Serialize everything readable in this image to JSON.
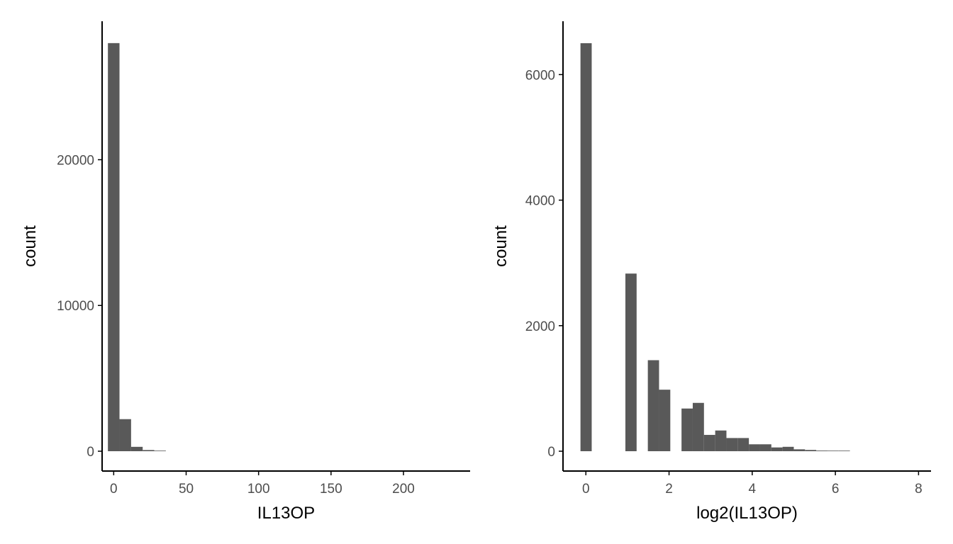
{
  "colors": {
    "bar": "#595959",
    "axis": "#000000",
    "tick_text": "#4d4d4d",
    "background": "#ffffff"
  },
  "chart_data": [
    {
      "type": "bar",
      "subtype": "histogram",
      "xlabel": "IL13OP",
      "ylabel": "count",
      "xlim": [
        -8,
        246
      ],
      "ylim": [
        0,
        29500
      ],
      "xticks": [
        0,
        50,
        100,
        150,
        200
      ],
      "yticks": [
        0,
        10000,
        20000
      ],
      "bin_width": 8,
      "bars": [
        {
          "x0": -4,
          "x1": 4,
          "value": 28000
        },
        {
          "x0": 4,
          "x1": 12,
          "value": 2200
        },
        {
          "x0": 12,
          "x1": 20,
          "value": 300
        },
        {
          "x0": 20,
          "x1": 28,
          "value": 80
        },
        {
          "x0": 28,
          "x1": 36,
          "value": 30
        }
      ],
      "grid": false
    },
    {
      "type": "bar",
      "subtype": "histogram",
      "xlabel": "log2(IL13OP)",
      "ylabel": "count",
      "xlim": [
        -0.55,
        8.3
      ],
      "ylim": [
        0,
        6850
      ],
      "xticks": [
        0,
        2,
        4,
        6,
        8
      ],
      "yticks": [
        0,
        2000,
        4000,
        6000
      ],
      "bin_width": 0.27,
      "bars": [
        {
          "x0": -0.13,
          "x1": 0.14,
          "value": 6500
        },
        {
          "x0": 0.95,
          "x1": 1.22,
          "value": 2830
        },
        {
          "x0": 1.49,
          "x1": 1.76,
          "value": 1450
        },
        {
          "x0": 1.76,
          "x1": 2.03,
          "value": 980
        },
        {
          "x0": 2.3,
          "x1": 2.57,
          "value": 680
        },
        {
          "x0": 2.57,
          "x1": 2.84,
          "value": 770
        },
        {
          "x0": 2.84,
          "x1": 3.11,
          "value": 260
        },
        {
          "x0": 3.11,
          "x1": 3.38,
          "value": 330
        },
        {
          "x0": 3.38,
          "x1": 3.65,
          "value": 210
        },
        {
          "x0": 3.65,
          "x1": 3.92,
          "value": 210
        },
        {
          "x0": 3.92,
          "x1": 4.19,
          "value": 110
        },
        {
          "x0": 4.19,
          "x1": 4.46,
          "value": 110
        },
        {
          "x0": 4.46,
          "x1": 4.73,
          "value": 60
        },
        {
          "x0": 4.73,
          "x1": 5.0,
          "value": 70
        },
        {
          "x0": 5.0,
          "x1": 5.27,
          "value": 30
        },
        {
          "x0": 5.27,
          "x1": 5.54,
          "value": 20
        },
        {
          "x0": 5.54,
          "x1": 5.81,
          "value": 10
        },
        {
          "x0": 5.81,
          "x1": 6.08,
          "value": 8
        },
        {
          "x0": 6.08,
          "x1": 6.35,
          "value": 5
        }
      ],
      "grid": false
    }
  ]
}
